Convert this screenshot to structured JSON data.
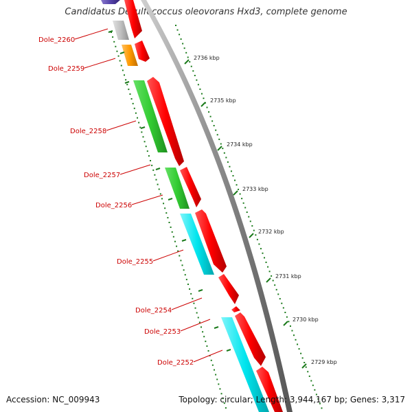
{
  "title": "Candidatus Desulfococcus oleovorans Hxd3, complete genome",
  "accession": "Accession: NC_009943",
  "summary": "Topology: circular; Length: 3,944,167 bp; Genes: 3,317",
  "colors": {
    "backbone": "#8c8c8c",
    "gene_forward": "#ff0000",
    "cog_gray": "#c0c0c0",
    "cog_orange": "#ff9900",
    "cog_green": "#33cc33",
    "cog_cyan": "#00e5ee",
    "cog_purple": "#5544aa",
    "ticks": "#1a7a1a",
    "gene_label": "#cc0000"
  },
  "gene_labels": [
    "Dole_2260",
    "Dole_2259",
    "Dole_2258",
    "Dole_2257",
    "Dole_2256",
    "Dole_2255",
    "Dole_2254",
    "Dole_2253",
    "Dole_2252"
  ],
  "kbp_labels": [
    "2736 kbp",
    "2735 kbp",
    "2734 kbp",
    "2733 kbp",
    "2732 kbp",
    "2731 kbp",
    "2730 kbp",
    "2729 kbp"
  ]
}
